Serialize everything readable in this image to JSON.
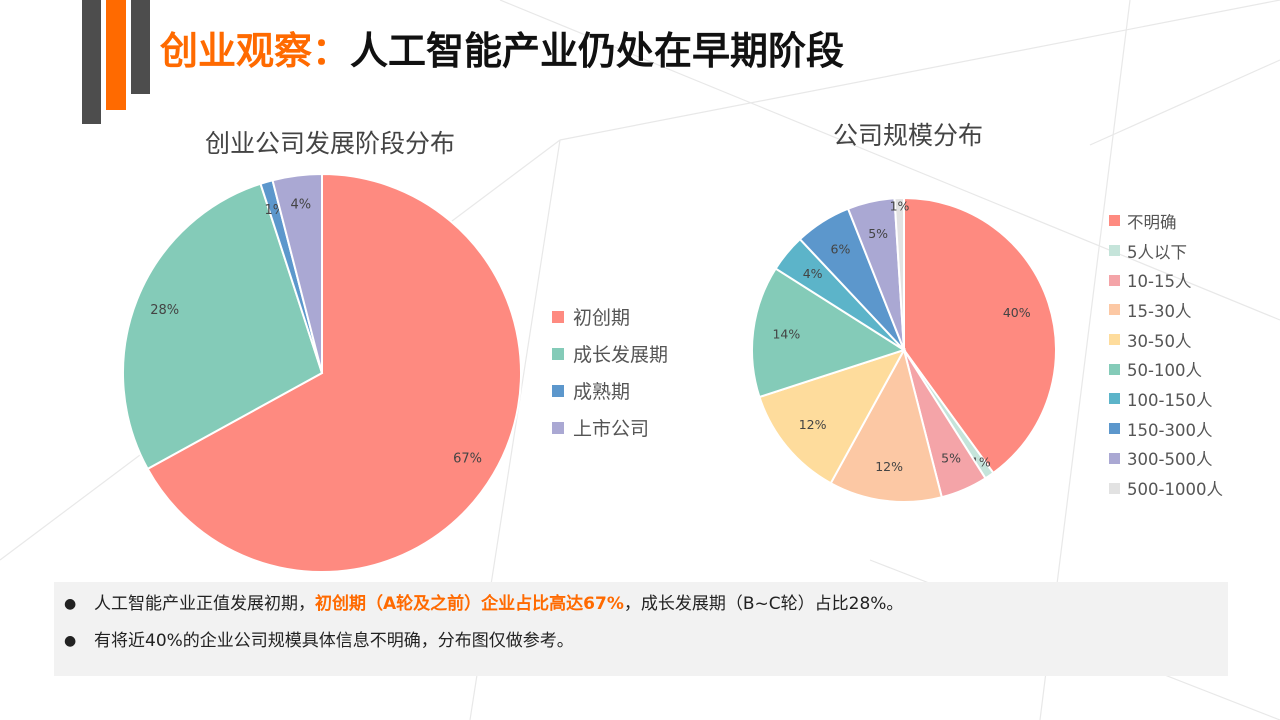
{
  "title": {
    "accent": "创业观察：",
    "rest": "人工智能产业仍处在早期阶段"
  },
  "chart_data": [
    {
      "type": "pie",
      "title": "创业公司发展阶段分布",
      "categories": [
        "初创期",
        "成长发展期",
        "成熟期",
        "上市公司"
      ],
      "values": [
        67,
        28,
        1,
        4
      ],
      "labels": [
        "67%",
        "28%",
        "1%",
        "4%"
      ],
      "colors": [
        "#fe8a80",
        "#84cbb8",
        "#5c97cc",
        "#aaa8d3"
      ],
      "legend": "right"
    },
    {
      "type": "pie",
      "title": "公司规模分布",
      "categories": [
        "不明确",
        "5人以下",
        "10-15人",
        "15-30人",
        "30-50人",
        "50-100人",
        "100-150人",
        "150-300人",
        "300-500人",
        "500-1000人"
      ],
      "values": [
        40,
        1,
        5,
        12,
        12,
        14,
        4,
        6,
        5,
        1
      ],
      "labels": [
        "40%",
        "1%",
        "5%",
        "12%",
        "12%",
        "14%",
        "4%",
        "6%",
        "5%",
        "1%"
      ],
      "colors": [
        "#fe8a80",
        "#c5e4da",
        "#f4a4a8",
        "#fcc8a4",
        "#fedc9c",
        "#84cbb8",
        "#5cb4c9",
        "#5c97cc",
        "#aaa8d3",
        "#e2e2e2"
      ],
      "legend": "right"
    }
  ],
  "notes": [
    {
      "pre": "人工智能产业正值发展初期，",
      "highlight": "初创期（A轮及之前）企业占比高达67%",
      "post": "，成长发展期（B~C轮）占比28%。"
    },
    {
      "pre": "有将近40%的企业公司规模具体信息不明确，分布图仅做参考。",
      "highlight": "",
      "post": ""
    }
  ]
}
